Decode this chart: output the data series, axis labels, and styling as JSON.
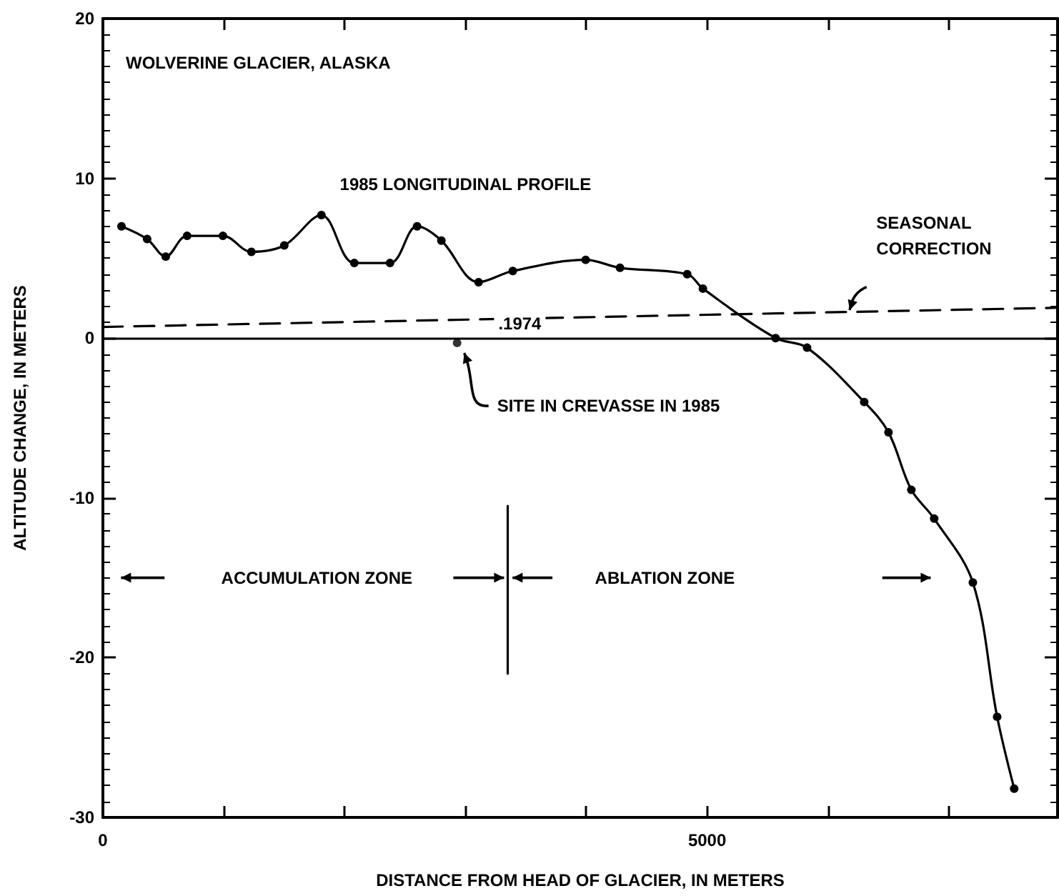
{
  "chart_data": {
    "type": "line",
    "title": "WOLVERINE GLACIER, ALASKA",
    "xlabel": "DISTANCE FROM HEAD OF GLACIER, IN METERS",
    "ylabel": "ALTITUDE CHANGE, IN METERS",
    "xlim": [
      0,
      7900
    ],
    "ylim": [
      -30,
      20
    ],
    "xticks": [
      0,
      {
        "value": 1000,
        "label": null
      },
      {
        "value": 2000,
        "label": null
      },
      {
        "value": 3000,
        "label": null
      },
      {
        "value": 4000,
        "label": null
      },
      5000,
      {
        "value": 6000,
        "label": null
      },
      {
        "value": 7000,
        "label": null
      }
    ],
    "yticks": [
      -30,
      -20,
      -10,
      0,
      10,
      20
    ],
    "grid": false,
    "legend": false,
    "series": [
      {
        "name": "1985 LONGITUDINAL PROFILE",
        "color": "#000000",
        "marker": "circle",
        "line_style": "solid",
        "x": [
          154,
          366,
          520,
          697,
          993,
          1229,
          1501,
          1808,
          2080,
          2376,
          2600,
          2801,
          3109,
          3392,
          3995,
          4279,
          4835,
          4965,
          5567,
          5827,
          6300,
          6501,
          6690,
          6879,
          7199,
          7400,
          7541
        ],
        "values": [
          7.0,
          6.2,
          5.1,
          6.4,
          6.4,
          5.4,
          5.8,
          7.7,
          4.7,
          4.7,
          7.0,
          6.1,
          3.5,
          4.2,
          4.9,
          4.4,
          4.0,
          3.1,
          0.0,
          -0.6,
          -4.0,
          -5.9,
          -9.5,
          -11.3,
          -15.3,
          -23.7,
          -28.2
        ]
      },
      {
        "name": "SEASONAL CORRECTION",
        "color": "#000000",
        "marker": "none",
        "line_style": "dashed",
        "x": [
          0,
          7900
        ],
        "values": [
          0.7,
          1.9
        ]
      },
      {
        "type": "scatter",
        "color": "#000000",
        "marker": "circle",
        "x": [
          2931
        ],
        "values": [
          -0.3
        ]
      },
      {
        "color": "#000000",
        "marker": "none",
        "line_style": "solid",
        "x": [
          3350,
          3350
        ],
        "values": [
          -10.5,
          -21
        ]
      }
    ],
    "ref_lines": [
      {
        "axis": "y",
        "value": 0,
        "color": "#000000",
        "line_style": "solid"
      }
    ],
    "annotations": [
      {
        "text": "SITE IN CREVASSE IN 1985",
        "x": 2931,
        "y": -0.3
      },
      "ACCUMULATION ZONE",
      "ABLATION ZONE",
      ".1974"
    ]
  }
}
